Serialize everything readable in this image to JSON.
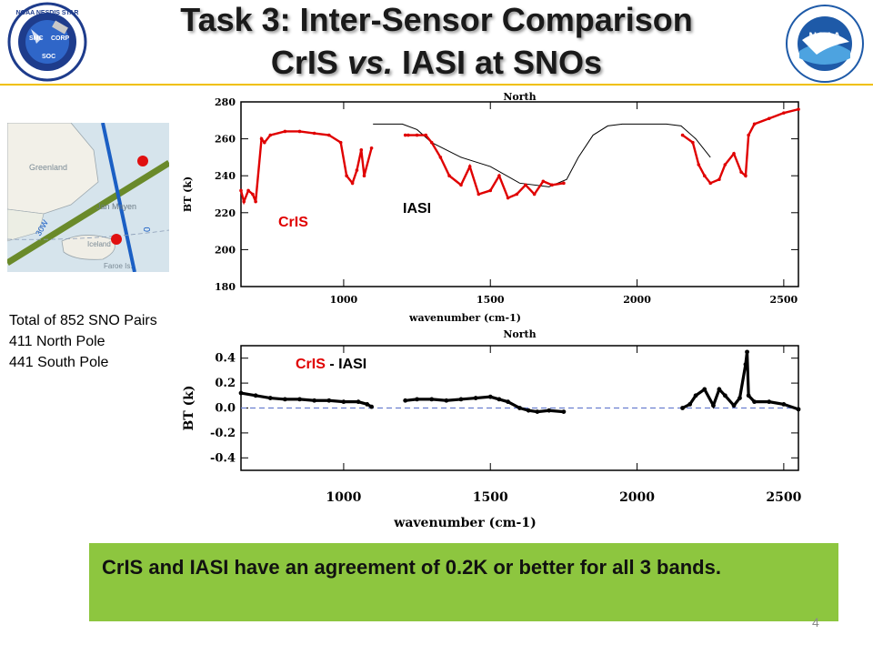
{
  "slide": {
    "title_line1": "Task 3: Inter-Sensor Comparison",
    "title_line2_a": "CrIS ",
    "title_line2_vs": "vs.",
    "title_line2_b": " IASI at SNOs",
    "page_number": "4",
    "accent_color": "#f0c000"
  },
  "left_logo": {
    "ring_text": "NOAA NESDIS STAR",
    "sub_text": "Center for Satellite Applications and Research",
    "labels": [
      "SMC",
      "CORP",
      "SOC"
    ]
  },
  "right_logo": {
    "center_text": "NOAA",
    "ring_text_top": "NATIONAL OCEANIC AND ATMOSPHERIC ADMINISTRATION",
    "ring_text_bottom": "U.S. DEPARTMENT OF COMMERCE"
  },
  "map": {
    "labels": [
      "Greenland",
      "Jan Mayen",
      "Iceland",
      "Faroe Is.",
      "30W",
      "0"
    ]
  },
  "stats": {
    "total": "Total of 852 SNO Pairs",
    "north": "411 North Pole",
    "south": "441 South Pole"
  },
  "banner": {
    "text": "CrIS and IASI have an agreement of 0.2K  or better for all 3 bands."
  },
  "colors": {
    "cris": "#e00000",
    "iasi": "#000000",
    "banner": "#8dc63f",
    "zero_line": "#6a7fd0"
  },
  "chart_data": [
    {
      "type": "line",
      "title": "North",
      "xlabel": "wavenumber (cm-1)",
      "ylabel": "BT (k)",
      "xlim": [
        650,
        2550
      ],
      "ylim": [
        180,
        280
      ],
      "xticks": [
        1000,
        1500,
        2000,
        2500
      ],
      "yticks": [
        180,
        200,
        220,
        240,
        260,
        280
      ],
      "series": [
        {
          "name": "CrIS",
          "bands": [
            {
              "x": [
                650,
                660,
                675,
                690,
                700,
                720,
                730,
                750,
                800,
                850,
                900,
                950,
                990,
                1010,
                1030,
                1045,
                1060,
                1070,
                1095
              ],
              "y": [
                232,
                226,
                232,
                230,
                226,
                260,
                258,
                262,
                264,
                264,
                263,
                262,
                258,
                240,
                236,
                243,
                254,
                240,
                255
              ]
            },
            {
              "x": [
                1210,
                1220,
                1250,
                1280,
                1300,
                1330,
                1360,
                1400,
                1430,
                1460,
                1500,
                1530,
                1560,
                1590,
                1620,
                1650,
                1680,
                1710,
                1750
              ],
              "y": [
                262,
                262,
                262,
                262,
                258,
                250,
                240,
                235,
                245,
                230,
                232,
                240,
                228,
                230,
                235,
                230,
                237,
                235,
                236
              ]
            },
            {
              "x": [
                2155,
                2190,
                2210,
                2230,
                2250,
                2280,
                2300,
                2330,
                2355,
                2370,
                2380,
                2400,
                2450,
                2500,
                2550
              ],
              "y": [
                262,
                258,
                246,
                240,
                236,
                238,
                246,
                252,
                242,
                240,
                262,
                268,
                271,
                274,
                276
              ]
            }
          ]
        },
        {
          "name": "IASI",
          "x": [
            1100,
            1150,
            1200,
            1250,
            1300,
            1400,
            1500,
            1600,
            1700,
            1760,
            1800,
            1850,
            1900,
            1950,
            2000,
            2050,
            2100,
            2150,
            2200,
            2250
          ],
          "y": [
            268,
            268,
            268,
            265,
            258,
            250,
            245,
            236,
            234,
            238,
            250,
            262,
            267,
            268,
            268,
            268,
            268,
            267,
            260,
            250
          ]
        }
      ],
      "annotations": [
        "CrIS",
        "IASI"
      ]
    },
    {
      "type": "scatter",
      "title": "North",
      "xlabel": "wavenumber (cm-1)",
      "ylabel": "BT (k)",
      "xlim": [
        650,
        2550
      ],
      "ylim": [
        -0.5,
        0.5
      ],
      "xticks": [
        1000,
        1500,
        2000,
        2500
      ],
      "yticks": [
        -0.4,
        -0.2,
        0.0,
        0.2,
        0.4
      ],
      "series": [
        {
          "name": "CrIS - IASI",
          "bands": [
            {
              "x": [
                650,
                700,
                750,
                800,
                850,
                900,
                950,
                1000,
                1050,
                1080,
                1095
              ],
              "y": [
                0.12,
                0.1,
                0.08,
                0.07,
                0.07,
                0.06,
                0.06,
                0.05,
                0.05,
                0.03,
                0.01
              ]
            },
            {
              "x": [
                1210,
                1250,
                1300,
                1350,
                1400,
                1450,
                1500,
                1530,
                1560,
                1600,
                1630,
                1660,
                1700,
                1750
              ],
              "y": [
                0.06,
                0.07,
                0.07,
                0.06,
                0.07,
                0.08,
                0.09,
                0.07,
                0.05,
                0.0,
                -0.02,
                -0.03,
                -0.02,
                -0.03
              ]
            },
            {
              "x": [
                2155,
                2180,
                2200,
                2230,
                2260,
                2280,
                2300,
                2330,
                2350,
                2370,
                2375,
                2380,
                2400,
                2450,
                2500,
                2550
              ],
              "y": [
                0.0,
                0.03,
                0.1,
                0.15,
                0.02,
                0.15,
                0.1,
                0.02,
                0.08,
                0.35,
                0.45,
                0.1,
                0.05,
                0.05,
                0.03,
                -0.01
              ]
            }
          ]
        }
      ],
      "reference_line": 0.0,
      "annotations": [
        "CrIS",
        "-",
        "IASI"
      ]
    }
  ]
}
